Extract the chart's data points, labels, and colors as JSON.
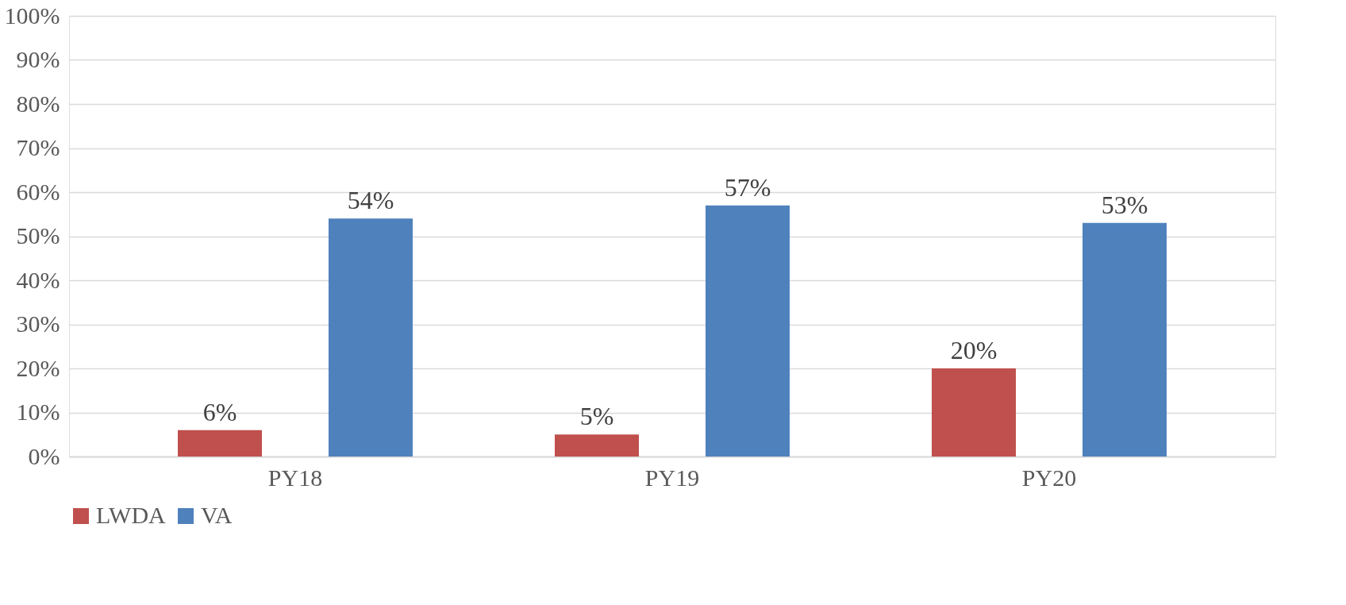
{
  "chart_data": {
    "type": "bar",
    "categories": [
      "PY18",
      "PY19",
      "PY20"
    ],
    "series": [
      {
        "name": "LWDA",
        "color": "#c0504d",
        "values": [
          6,
          5,
          20
        ],
        "value_labels": [
          "6%",
          "5%",
          "20%"
        ]
      },
      {
        "name": "VA",
        "color": "#4f81bd",
        "values": [
          54,
          57,
          53
        ],
        "value_labels": [
          "54%",
          "57%",
          "53%"
        ]
      }
    ],
    "ylim": [
      0,
      100
    ],
    "yticks": [
      {
        "value": 0,
        "label": "0%"
      },
      {
        "value": 10,
        "label": "10%"
      },
      {
        "value": 20,
        "label": "20%"
      },
      {
        "value": 30,
        "label": "30%"
      },
      {
        "value": 40,
        "label": "40%"
      },
      {
        "value": 50,
        "label": "50%"
      },
      {
        "value": 60,
        "label": "60%"
      },
      {
        "value": 70,
        "label": "70%"
      },
      {
        "value": 80,
        "label": "80%"
      },
      {
        "value": 90,
        "label": "90%"
      },
      {
        "value": 100,
        "label": "100%"
      }
    ],
    "grid": "y",
    "legend": "bottom"
  }
}
